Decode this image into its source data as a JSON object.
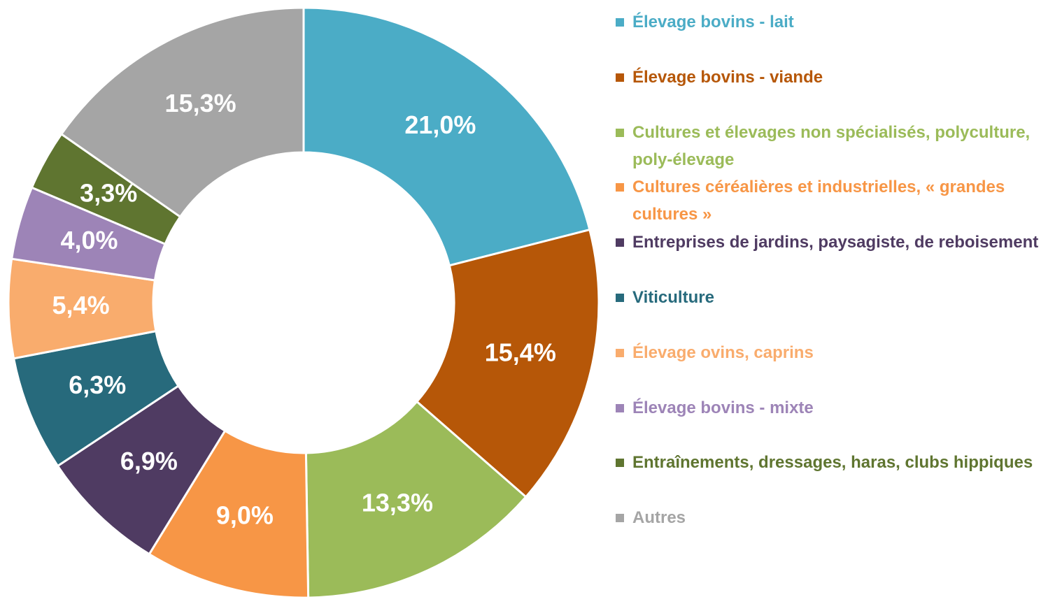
{
  "chart_data": {
    "type": "donut",
    "categories": [
      "Élevage bovins - lait",
      "Élevage bovins - viande",
      "Cultures et élevages non spécialisés, polyculture, poly-élevage",
      "Cultures céréalières et industrielles, « grandes cultures »",
      "Entreprises de jardins, paysagiste, de reboisement",
      "Viticulture",
      "Élevage ovins, caprins",
      "Élevage bovins - mixte",
      "Entraînements, dressages, haras, clubs hippiques",
      "Autres"
    ],
    "values": [
      21.0,
      15.4,
      13.3,
      9.0,
      6.9,
      6.3,
      5.4,
      4.0,
      3.3,
      15.3
    ],
    "value_labels": [
      "21,0%",
      "15,4%",
      "13,3%",
      "9,0%",
      "6,9%",
      "6,3%",
      "5,4%",
      "4,0%",
      "3,3%",
      "15,3%"
    ],
    "colors": [
      "#4bacc6",
      "#b65708",
      "#9bbb59",
      "#f79646",
      "#4f3b62",
      "#276a7c",
      "#f9ac6d",
      "#9d84b7",
      "#5f7530",
      "#a5a5a5"
    ],
    "legend": "right"
  }
}
